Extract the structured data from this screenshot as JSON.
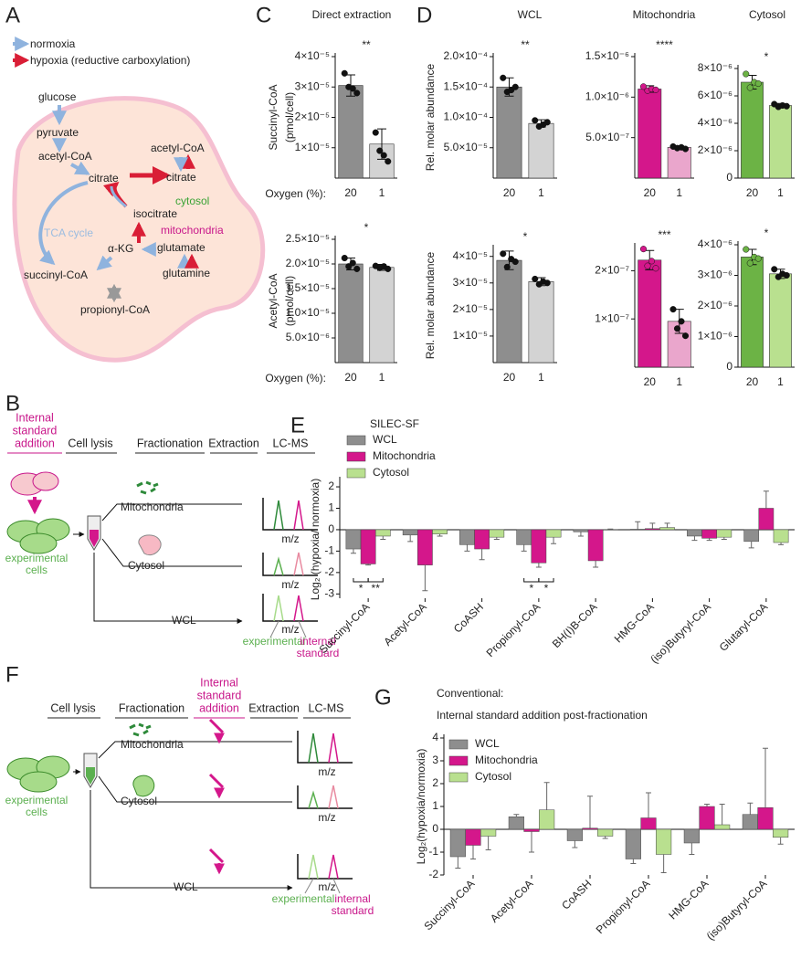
{
  "panels": [
    "A",
    "B",
    "C",
    "D",
    "E",
    "F",
    "G"
  ],
  "diagram_a": {
    "legend_normoxia": "normoxia",
    "legend_hypoxia": "hypoxia (reductive carboxylation)",
    "glucose": "glucose",
    "pyruvate": "pyruvate",
    "acetyl_coa_mito": "acetyl-CoA",
    "citrate_mito": "citrate",
    "acetyl_coa_cyto": "acetyl-CoA",
    "citrate_cyto": "citrate",
    "cytosol": "cytosol",
    "tca": "TCA cycle",
    "isocitrate": "isocitrate",
    "mitochondria": "mitochondria",
    "akg": "α-KG",
    "glutamate": "glutamate",
    "succinyl_coa": "succinyl-CoA",
    "glutamine": "glutamine",
    "propionyl_coa": "propionyl-CoA"
  },
  "diagram_b": {
    "standard": [
      "Internal",
      "standard",
      "addition"
    ],
    "steps": [
      "Cell lysis",
      "Fractionation",
      "Extraction",
      "LC-MS"
    ],
    "fractions": [
      "Mitochondria",
      "Cytosol",
      "WCL"
    ],
    "mz": [
      "m/z",
      "m/z",
      "m/z"
    ],
    "cells": [
      "experimental",
      "cells"
    ],
    "experimental": "experimental",
    "internal_standard": [
      "internal",
      "standard"
    ]
  },
  "diagram_f": {
    "steps": [
      "Cell lysis",
      "Fractionation",
      "Extraction",
      "LC-MS"
    ],
    "standard": [
      "Internal",
      "standard",
      "addition"
    ],
    "fractions": [
      "Mitochondria",
      "Cytosol",
      "WCL"
    ],
    "mz": [
      "m/z",
      "m/z",
      "m/z"
    ],
    "cells": [
      "experimental",
      "cells"
    ],
    "experimental": "experimental",
    "internal_standard": [
      "internal",
      "standard"
    ]
  },
  "chart_data": [
    {
      "type": "bar",
      "title": "Direct extraction",
      "ylabel": [
        "Succinyl-CoA",
        "(pmol/cell)"
      ],
      "xlabel": "Oxygen (%):",
      "categories": [
        "20",
        "1"
      ],
      "values": [
        3.05e-05,
        1.12e-05
      ],
      "errors": [
        3.5e-06,
        5e-06
      ],
      "points": [
        [
          3.45e-05,
          3e-05,
          2.95e-05,
          2.8e-05
        ],
        [
          1.5e-05,
          9e-06,
          7.5e-06,
          5.5e-06
        ]
      ],
      "colors": [
        "#8e8e8e",
        "#d3d3d3"
      ],
      "significance": "**",
      "ylim": [
        0,
        4e-05
      ],
      "yticks": [
        {
          "value": 1e-05,
          "label": "1×10⁻⁵"
        },
        {
          "value": 2e-05,
          "label": "2×10⁻⁵"
        },
        {
          "value": 3e-05,
          "label": "3×10⁻⁵"
        },
        {
          "value": 4e-05,
          "label": "4×10⁻⁵"
        }
      ]
    },
    {
      "type": "bar",
      "ylabel": [
        "Acetyl-CoA",
        "(pmol/cell)"
      ],
      "xlabel": "Oxygen (%):",
      "categories": [
        "20",
        "1"
      ],
      "values": [
        2e-05,
        1.93e-05
      ],
      "errors": [
        1.2e-06,
        6e-07
      ],
      "points": [
        [
          2.12e-05,
          1.95e-05,
          2.02e-05,
          1.9e-05
        ],
        [
          1.96e-05,
          1.92e-05,
          1.95e-05,
          1.9e-05
        ]
      ],
      "colors": [
        "#8e8e8e",
        "#d3d3d3"
      ],
      "significance": "*",
      "ylim": [
        0,
        2.5e-05
      ],
      "yticks": [
        {
          "value": 5e-06,
          "label": "5.0×10⁻⁶"
        },
        {
          "value": 1e-05,
          "label": "1.0×10⁻⁵"
        },
        {
          "value": 1.5e-05,
          "label": "1.5×10⁻⁵"
        },
        {
          "value": 2e-05,
          "label": "2.0×10⁻⁵"
        },
        {
          "value": 2.5e-05,
          "label": "2.5×10⁻⁵"
        }
      ]
    },
    {
      "type": "bar",
      "title": "WCL",
      "ylabel": [
        "Rel. molar abundance"
      ],
      "categories": [
        "20",
        "1"
      ],
      "values": [
        0.00015,
        9e-05
      ],
      "errors": [
        1.5e-05,
        6e-06
      ],
      "points": [
        [
          0.000165,
          0.000142,
          0.000145,
          0.00015
        ],
        [
          9.5e-05,
          8.5e-05,
          8.8e-05,
          9.2e-05
        ]
      ],
      "colors": [
        "#8e8e8e",
        "#d3d3d3"
      ],
      "significance": "**",
      "ylim": [
        0,
        0.0002
      ],
      "yticks": [
        {
          "value": 5e-05,
          "label": "5.0×10⁻⁵"
        },
        {
          "value": 0.0001,
          "label": "1.0×10⁻⁴"
        },
        {
          "value": 0.00015,
          "label": "1.5×10⁻⁴"
        },
        {
          "value": 0.0002,
          "label": "2.0×10⁻⁴"
        }
      ]
    },
    {
      "type": "bar",
      "title": "Mitochondria",
      "categories": [
        "20",
        "1"
      ],
      "values": [
        1.1e-06,
        3.8e-07
      ],
      "errors": [
        4e-08,
        2e-08
      ],
      "points": [
        [
          1.13e-06,
          1.08e-06,
          1.1e-06,
          1.09e-06
        ],
        [
          3.9e-07,
          3.7e-07,
          3.8e-07,
          3.6e-07
        ]
      ],
      "colors": [
        "#d4178b",
        "#eaa6cc"
      ],
      "significance": "****",
      "ylim": [
        0,
        1.5e-06
      ],
      "yticks": [
        {
          "value": 5e-07,
          "label": "5.0×10⁻⁷"
        },
        {
          "value": 1e-06,
          "label": "1.0×10⁻⁶"
        },
        {
          "value": 1.5e-06,
          "label": "1.5×10⁻⁶"
        }
      ]
    },
    {
      "type": "bar",
      "title": "Cytosol",
      "categories": [
        "20",
        "1"
      ],
      "values": [
        7e-06,
        5.3e-06
      ],
      "errors": [
        5e-07,
        1.5e-07
      ],
      "points": [
        [
          7.6e-06,
          6.6e-06,
          7e-06,
          6.9e-06
        ],
        [
          5.4e-06,
          5.2e-06,
          5.3e-06,
          5.25e-06
        ]
      ],
      "colors": [
        "#6cb345",
        "#b9e08f"
      ],
      "significance": "*",
      "ylim": [
        0,
        8e-06
      ],
      "yticks": [
        0,
        {
          "value": 2e-06,
          "label": "2×10⁻⁶"
        },
        {
          "value": 4e-06,
          "label": "4×10⁻⁶"
        },
        {
          "value": 6e-06,
          "label": "6×10⁻⁶"
        },
        {
          "value": 8e-06,
          "label": "8×10⁻⁶"
        }
      ]
    },
    {
      "type": "bar",
      "ylabel": [
        "Rel. molar abundance"
      ],
      "categories": [
        "20",
        "1"
      ],
      "values": [
        3.85e-05,
        3.05e-05
      ],
      "errors": [
        3.5e-06,
        1.5e-06
      ],
      "points": [
        [
          4.1e-05,
          3.6e-05,
          3.9e-05,
          3.8e-05
        ],
        [
          3.15e-05,
          2.95e-05,
          3.05e-05,
          3e-05
        ]
      ],
      "colors": [
        "#8e8e8e",
        "#d3d3d3"
      ],
      "significance": "*",
      "ylim": [
        0,
        4.3e-05
      ],
      "yticks": [
        {
          "value": 1e-05,
          "label": "1×10⁻⁵"
        },
        {
          "value": 2e-05,
          "label": "2×10⁻⁵"
        },
        {
          "value": 3e-05,
          "label": "3×10⁻⁵"
        },
        {
          "value": 4e-05,
          "label": "4×10⁻⁵"
        }
      ]
    },
    {
      "type": "bar",
      "categories": [
        "20",
        "1"
      ],
      "values": [
        2.22e-07,
        9.5e-08
      ],
      "errors": [
        2e-08,
        2.5e-08
      ],
      "points": [
        [
          2.45e-07,
          2.1e-07,
          2.2e-07,
          2.05e-07
        ],
        [
          1.2e-07,
          8e-08,
          9.5e-08,
          6.5e-08
        ]
      ],
      "colors": [
        "#d4178b",
        "#eaa6cc"
      ],
      "significance": "***",
      "ylim": [
        0,
        2.5e-07
      ],
      "yticks": [
        {
          "value": 1e-07,
          "label": "1×10⁻⁷"
        },
        {
          "value": 2e-07,
          "label": "2×10⁻⁷"
        }
      ]
    },
    {
      "type": "bar",
      "categories": [
        "20",
        "1"
      ],
      "values": [
        3.6e-06,
        3.05e-06
      ],
      "errors": [
        2.5e-07,
        1.5e-07
      ],
      "points": [
        [
          3.85e-06,
          3.4e-06,
          3.6e-06,
          3.55e-06
        ],
        [
          3.2e-06,
          2.95e-06,
          3.05e-06,
          3e-06
        ]
      ],
      "colors": [
        "#6cb345",
        "#b9e08f"
      ],
      "significance": "*",
      "ylim": [
        0,
        4e-06
      ],
      "yticks": [
        0,
        {
          "value": 1e-06,
          "label": "1×10⁻⁶"
        },
        {
          "value": 2e-06,
          "label": "2×10⁻⁶"
        },
        {
          "value": 3e-06,
          "label": "3×10⁻⁶"
        },
        {
          "value": 4e-06,
          "label": "4×10⁻⁶"
        }
      ]
    },
    {
      "type": "grouped_bar",
      "title": [
        "SILEC-SF"
      ],
      "ylabel": [
        "Log₂ (hypoxia/ normoxia)"
      ],
      "categories": [
        "Succinyl-CoA",
        "Acetyl-CoA",
        "CoASH",
        "Propionyl-CoA",
        "BH(I)B-CoA",
        "HMG-CoA",
        "(iso)Butyryl-CoA",
        "Glutaryl-CoA"
      ],
      "series": [
        {
          "name": "WCL",
          "color": "#8e8e8e",
          "values": [
            -0.9,
            -0.25,
            -0.7,
            -0.7,
            -0.1,
            0.02,
            -0.3,
            -0.55
          ],
          "errors": [
            0.2,
            0.3,
            0.3,
            0.3,
            0.2,
            0.35,
            0.2,
            0.3
          ]
        },
        {
          "name": "Mitochondria",
          "color": "#d4178b",
          "values": [
            -1.6,
            -1.65,
            -0.9,
            -1.55,
            -1.45,
            0.05,
            -0.4,
            1.0
          ],
          "errors": [
            0.05,
            1.2,
            0.5,
            0.2,
            0.3,
            0.25,
            0.1,
            0.8
          ]
        },
        {
          "name": "Cytosol",
          "color": "#b9e08f",
          "values": [
            -0.3,
            -0.2,
            -0.35,
            -0.35,
            0.01,
            0.1,
            -0.35,
            -0.6
          ],
          "errors": [
            0.15,
            0.1,
            0.1,
            0.3,
            0.02,
            0.2,
            0.1,
            0.1
          ]
        }
      ],
      "annotations": [
        "*",
        "**",
        "*",
        "*"
      ],
      "ylim": [
        -3.2,
        2.3
      ],
      "yticks": [
        -3,
        -2,
        -1,
        0,
        1,
        2
      ]
    },
    {
      "type": "grouped_bar",
      "title": [
        "Conventional:",
        "Internal standard addition post-fractionation"
      ],
      "ylabel": [
        "Log₂(hypoxia/normoxia)"
      ],
      "categories": [
        "Succinyl-CoA",
        "Acetyl-CoA",
        "CoASH",
        "Propionyl-CoA",
        "HMG-CoA",
        "(iso)Butyryl-CoA"
      ],
      "series": [
        {
          "name": "WCL",
          "color": "#8e8e8e",
          "values": [
            -1.2,
            0.55,
            -0.5,
            -1.3,
            -0.6,
            0.65
          ],
          "errors": [
            0.5,
            0.1,
            0.3,
            0.2,
            0.5,
            0.5
          ]
        },
        {
          "name": "Mitochondria",
          "color": "#d4178b",
          "values": [
            -0.7,
            -0.1,
            0.05,
            0.5,
            1.0,
            0.95
          ],
          "errors": [
            0.6,
            0.9,
            1.4,
            1.1,
            0.1,
            2.6
          ]
        },
        {
          "name": "Cytosol",
          "color": "#b9e08f",
          "values": [
            -0.3,
            0.85,
            -0.3,
            -1.1,
            0.2,
            -0.35
          ],
          "errors": [
            0.6,
            1.2,
            0.1,
            0.8,
            0.9,
            0.3
          ]
        }
      ],
      "ylim": [
        -2,
        4
      ],
      "yticks": [
        -2,
        -1,
        0,
        1,
        2,
        3,
        4
      ]
    }
  ]
}
